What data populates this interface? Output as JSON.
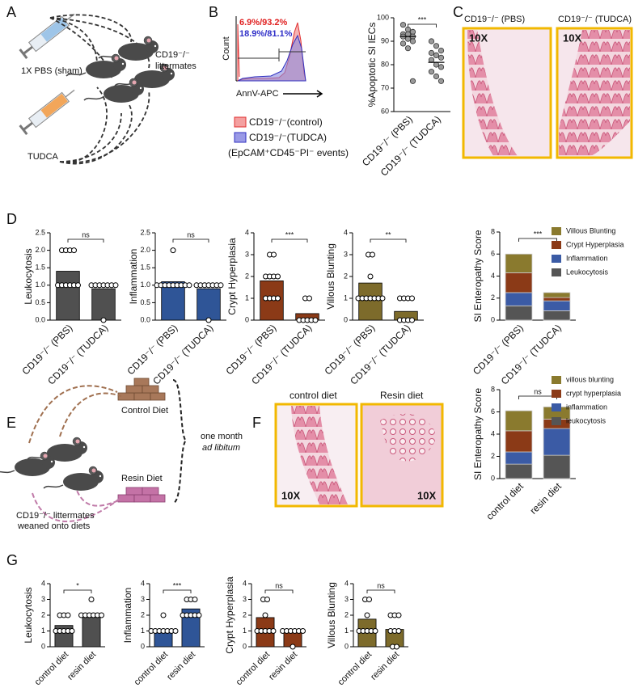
{
  "panel_labels": [
    "A",
    "B",
    "C",
    "D",
    "E",
    "F",
    "G"
  ],
  "panel_a": {
    "syringe_1": "1X PBS (sham)",
    "syringe_2": "TUDCA",
    "mice": [
      "CD19⁻/⁻",
      "littermates"
    ]
  },
  "panel_b": {
    "gate_labels": [
      "6.9%/93.2%",
      "18.9%/81.1%"
    ],
    "ylabel": "Count",
    "xlabel": "AnnV-APC",
    "legend": [
      "CD19⁻/⁻(control)",
      "CD19⁻/⁻(TUDCA)"
    ],
    "note": "(EpCAM⁺CD45⁻PI⁻ events)"
  },
  "panel_c": {
    "images": [
      {
        "title": "CD19⁻/⁻ (PBS)",
        "magnification": "10X"
      },
      {
        "title": "CD19⁻/⁻ (TUDCA)",
        "magnification": "10X"
      }
    ]
  },
  "panel_e": {
    "diet_1": "Control Diet",
    "diet_2": "Resin Diet",
    "duration": [
      "one month",
      "ad libitum"
    ],
    "mice": [
      "CD19⁻/⁻ littermates",
      "weaned onto diets"
    ]
  },
  "panel_f": {
    "images": [
      {
        "title": "control diet",
        "magnification": "10X"
      },
      {
        "title": "Resin diet",
        "magnification": "10X"
      }
    ]
  },
  "chart_data": [
    {
      "type": "strip",
      "ylabel": "%Apoptotic SI IECs",
      "categories": [
        "CD19⁻/⁻ (PBS)",
        "CD19⁻/⁻ (TUDCA)"
      ],
      "values": [
        92,
        81
      ],
      "points": [
        [
          97,
          95,
          94,
          93,
          93,
          92,
          92,
          91,
          90,
          89,
          87,
          73
        ],
        [
          90,
          88,
          86,
          85,
          84,
          83,
          82,
          80,
          79,
          77,
          75,
          73
        ]
      ],
      "color": "#9a9a9a",
      "ylim": [
        60,
        100
      ],
      "yticks": [
        60,
        70,
        80,
        90,
        100
      ],
      "annotation": "***"
    },
    {
      "type": "bar",
      "ylabel": "Leukocytosis",
      "categories": [
        "CD19⁻/⁻ (PBS)",
        "CD19⁻/⁻ (TUDCA)"
      ],
      "values": [
        1.4,
        0.9
      ],
      "points": [
        [
          2,
          2,
          2,
          2,
          1,
          1,
          1,
          1,
          1,
          1
        ],
        [
          1,
          1,
          1,
          1,
          1,
          1,
          1,
          0
        ]
      ],
      "color": "#505050",
      "ylim": [
        0,
        2.5
      ],
      "yticks": [
        {
          "value": 0,
          "label": "0.0"
        },
        0.5,
        {
          "value": 1,
          "label": "1.0"
        },
        1.5,
        {
          "value": 2,
          "label": "2.0"
        },
        2.5
      ],
      "annotation": "ns"
    },
    {
      "type": "bar",
      "ylabel": "Inflammation",
      "categories": [
        "CD19⁻/⁻ (PBS)",
        "CD19⁻/⁻ (TUDCA)"
      ],
      "values": [
        1.1,
        0.9
      ],
      "points": [
        [
          2,
          1,
          1,
          1,
          1,
          1,
          1,
          1,
          1,
          1
        ],
        [
          1,
          1,
          1,
          1,
          1,
          1,
          1,
          0
        ]
      ],
      "color": "#2f5597",
      "ylim": [
        0,
        2.5
      ],
      "yticks": [
        {
          "value": 0,
          "label": "0.0"
        },
        0.5,
        {
          "value": 1,
          "label": "1.0"
        },
        1.5,
        {
          "value": 2,
          "label": "2.0"
        },
        2.5
      ],
      "annotation": "ns"
    },
    {
      "type": "bar",
      "ylabel": "Crypt Hyperplasia",
      "categories": [
        "CD19⁻/⁻ (PBS)",
        "CD19⁻/⁻ (TUDCA)"
      ],
      "values": [
        1.8,
        0.3
      ],
      "points": [
        [
          3,
          3,
          2,
          2,
          2,
          2,
          1,
          1,
          1,
          1
        ],
        [
          1,
          1,
          0,
          0,
          0,
          0,
          0
        ]
      ],
      "color": "#8b3a17",
      "ylim": [
        0,
        4
      ],
      "yticks": [
        0,
        1,
        2,
        3,
        4
      ],
      "annotation": "***"
    },
    {
      "type": "bar",
      "ylabel": "Villous Blunting",
      "categories": [
        "CD19⁻/⁻ (PBS)",
        "CD19⁻/⁻ (TUDCA)"
      ],
      "values": [
        1.7,
        0.4
      ],
      "points": [
        [
          3,
          3,
          2,
          1,
          1,
          1,
          1,
          1,
          1,
          1
        ],
        [
          1,
          1,
          1,
          1,
          0,
          0,
          0,
          0
        ]
      ],
      "color": "#7d6b2b",
      "ylim": [
        0,
        4
      ],
      "yticks": [
        0,
        1,
        2,
        3,
        4
      ],
      "annotation": "**"
    },
    {
      "type": "stacked_bar",
      "ylabel": "SI Enteropathy Score",
      "categories": [
        "CD19⁻/⁻ (PBS)",
        "CD19⁻/⁻ (TUDCA)"
      ],
      "series": [
        {
          "name": "Leukocytosis",
          "color": "#555555",
          "values": [
            1.3,
            0.85
          ]
        },
        {
          "name": "Inflammation",
          "color": "#3b5ba5",
          "values": [
            1.2,
            0.9
          ]
        },
        {
          "name": "Crypt Hyperplasia",
          "color": "#8b3a17",
          "values": [
            1.8,
            0.3
          ]
        },
        {
          "name": "Villous Blunting",
          "color": "#8a7a2e",
          "values": [
            1.7,
            0.45
          ]
        }
      ],
      "ylim": [
        0,
        8
      ],
      "yticks": [
        0,
        2,
        4,
        6,
        8
      ],
      "annotation": "***"
    },
    {
      "type": "stacked_bar",
      "ylabel": "SI Enteropathy Score",
      "categories": [
        "control diet",
        "resin diet"
      ],
      "series": [
        {
          "name": "leukocytosis",
          "color": "#555555",
          "values": [
            1.3,
            2.1
          ]
        },
        {
          "name": "inflammation",
          "color": "#3b5ba5",
          "values": [
            1.1,
            2.4
          ]
        },
        {
          "name": "crypt hyperplasia",
          "color": "#8b3a17",
          "values": [
            1.9,
            0.85
          ]
        },
        {
          "name": "villous blunting",
          "color": "#8a7a2e",
          "values": [
            1.8,
            1.1
          ]
        }
      ],
      "ylim": [
        0,
        8
      ],
      "yticks": [
        0,
        2,
        4,
        6,
        8
      ],
      "annotation": "ns"
    },
    {
      "type": "bar",
      "ylabel": "Leukocytosis",
      "categories": [
        "control diet",
        "resin diet"
      ],
      "values": [
        1.35,
        2.1
      ],
      "points": [
        [
          2,
          2,
          2,
          1,
          1,
          1,
          1,
          1
        ],
        [
          3,
          2,
          2,
          2,
          2,
          2,
          2
        ]
      ],
      "color": "#505050",
      "ylim": [
        0,
        4
      ],
      "yticks": [
        0,
        1,
        2,
        3,
        4
      ],
      "annotation": "*"
    },
    {
      "type": "bar",
      "ylabel": "Inflammation",
      "categories": [
        "control diet",
        "resin diet"
      ],
      "values": [
        1.1,
        2.4
      ],
      "points": [
        [
          2,
          1,
          1,
          1,
          1,
          1,
          1,
          1
        ],
        [
          3,
          3,
          3,
          2,
          2,
          2,
          2,
          2
        ]
      ],
      "color": "#2f5597",
      "ylim": [
        0,
        4
      ],
      "yticks": [
        0,
        1,
        2,
        3,
        4
      ],
      "annotation": "***"
    },
    {
      "type": "bar",
      "ylabel": "Crypt Hyperplasia",
      "categories": [
        "control diet",
        "resin diet"
      ],
      "values": [
        1.85,
        0.9
      ],
      "points": [
        [
          3,
          3,
          2,
          1,
          1,
          1,
          1,
          1
        ],
        [
          1,
          1,
          1,
          1,
          1,
          1,
          0
        ]
      ],
      "color": "#8b3a17",
      "ylim": [
        0,
        4
      ],
      "yticks": [
        0,
        1,
        2,
        3,
        4
      ],
      "annotation": "ns"
    },
    {
      "type": "bar",
      "ylabel": "Villous Blunting",
      "categories": [
        "control diet",
        "resin diet"
      ],
      "values": [
        1.75,
        1.1
      ],
      "points": [
        [
          3,
          3,
          2,
          1,
          1,
          1,
          1,
          1
        ],
        [
          2,
          2,
          2,
          1,
          1,
          1,
          0,
          0
        ]
      ],
      "color": "#7d6b2b",
      "ylim": [
        0,
        4
      ],
      "yticks": [
        0,
        1,
        2,
        3,
        4
      ],
      "annotation": "ns"
    }
  ]
}
